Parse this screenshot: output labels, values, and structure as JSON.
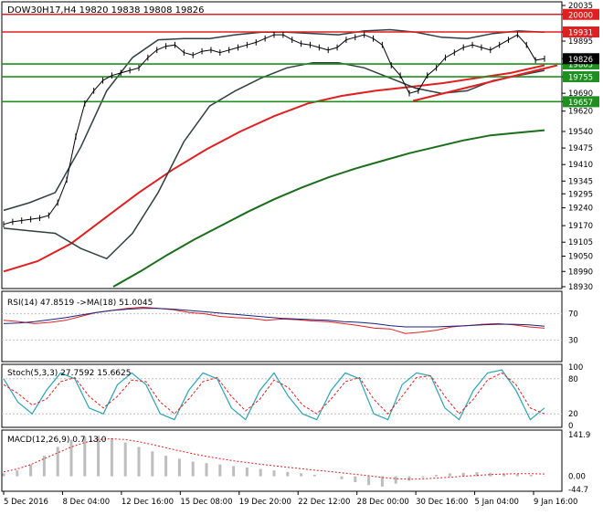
{
  "chart_data": {
    "type": "line",
    "instrument": "DOW30H17,H4",
    "ohlc": {
      "open": "19820",
      "high": "19838",
      "low": "19808",
      "close": "19826"
    },
    "title_text": "DOW30H17,H4  19820 19838 19808 19826",
    "price_axis": {
      "ticks": [
        "20035",
        "20000",
        "19931",
        "19895",
        "19826",
        "19805",
        "19755",
        "19690",
        "19657",
        "19620",
        "19540",
        "19475",
        "19410",
        "19345",
        "19295",
        "19240",
        "19170",
        "19105",
        "19050",
        "18990",
        "18930"
      ],
      "ylim": [
        18930,
        20035
      ]
    },
    "levels": [
      {
        "value": 20000,
        "label": "20000",
        "color": "#e02020",
        "style": "solid"
      },
      {
        "value": 19931,
        "label": "19931",
        "color": "#e02020",
        "style": "solid"
      },
      {
        "value": 19805,
        "label": "19805",
        "color": "#1f8f1f",
        "style": "solid"
      },
      {
        "value": 19755,
        "label": "19755",
        "color": "#1f8f1f",
        "style": "solid"
      },
      {
        "value": 19657,
        "label": "19657",
        "color": "#1f8f1f",
        "style": "solid"
      }
    ],
    "current_price": {
      "value": 19826,
      "label": "19826"
    },
    "x_ticks": [
      "5 Dec 2016",
      "8 Dec 04:00",
      "12 Dec 16:00",
      "15 Dec 08:00",
      "19 Dec 20:00",
      "22 Dec 12:00",
      "28 Dec 00:00",
      "30 Dec 16:00",
      "5 Jan 04:00",
      "9 Jan 16:00"
    ],
    "price_series": {
      "name": "close",
      "values": [
        19175,
        19185,
        19190,
        19195,
        19200,
        19210,
        19260,
        19350,
        19520,
        19650,
        19700,
        19740,
        19760,
        19770,
        19780,
        19790,
        19830,
        19860,
        19875,
        19880,
        19850,
        19840,
        19855,
        19860,
        19850,
        19860,
        19870,
        19880,
        19890,
        19905,
        19920,
        19920,
        19900,
        19885,
        19880,
        19870,
        19860,
        19870,
        19900,
        19910,
        19920,
        19905,
        19880,
        19800,
        19760,
        19690,
        19700,
        19760,
        19790,
        19830,
        19850,
        19870,
        19880,
        19870,
        19860,
        19880,
        19900,
        19920,
        19880,
        19820,
        19826
      ]
    },
    "sma200": {
      "name": "",
      "values": [
        18930,
        18990,
        19055,
        19115,
        19170,
        19225,
        19275,
        19320,
        19360,
        19395,
        19425,
        19455,
        19480,
        19505,
        19525,
        19535,
        19545
      ]
    },
    "sma100": {
      "name": "",
      "values": [
        18990,
        19030,
        19100,
        19200,
        19300,
        19390,
        19470,
        19540,
        19600,
        19650,
        19680,
        19700,
        19715,
        19730,
        19750,
        19770,
        19800
      ]
    },
    "bollinger_upper": [
      19230,
      19260,
      19300,
      19480,
      19700,
      19830,
      19900,
      19905,
      19905,
      19920,
      19930,
      19930,
      19925,
      19920,
      19935,
      19940,
      19930,
      19910,
      19905,
      19925,
      19935,
      19930
    ],
    "bollinger_lower": [
      19160,
      19150,
      19140,
      19080,
      19040,
      19140,
      19300,
      19500,
      19640,
      19700,
      19750,
      19790,
      19810,
      19810,
      19790,
      19750,
      19710,
      19690,
      19700,
      19740,
      19760,
      19780
    ],
    "trendlines": [
      {
        "from": 19660,
        "to": 19800,
        "color": "#e02020"
      }
    ],
    "rsi": {
      "label": "RSI(14) 47.8519  ->MA(18) 51.0045",
      "ticks": [
        "70",
        "30"
      ],
      "ylim": [
        0,
        100
      ],
      "values": [
        60,
        58,
        55,
        57,
        60,
        66,
        72,
        75,
        78,
        80,
        78,
        76,
        72,
        70,
        66,
        64,
        63,
        60,
        62,
        61,
        59,
        58,
        55,
        52,
        48,
        47,
        40,
        42,
        45,
        50,
        52,
        54,
        55,
        53,
        50,
        48
      ],
      "ma_values": [
        55,
        56,
        58,
        61,
        64,
        68,
        72,
        75,
        77,
        78,
        78,
        77,
        75,
        73,
        71,
        69,
        67,
        65,
        63,
        62,
        61,
        60,
        58,
        57,
        55,
        52,
        50,
        50,
        50,
        51,
        52,
        53,
        54,
        54,
        53,
        51
      ]
    },
    "stoch": {
      "label": "Stoch(5,3,3) 27.7592 15.6625",
      "ticks": [
        "100",
        "80",
        "20",
        "0"
      ],
      "ylim": [
        0,
        100
      ],
      "k_values": [
        80,
        40,
        20,
        60,
        90,
        80,
        30,
        20,
        70,
        90,
        70,
        20,
        10,
        60,
        90,
        80,
        30,
        10,
        60,
        90,
        50,
        20,
        10,
        60,
        90,
        80,
        20,
        10,
        70,
        90,
        85,
        30,
        10,
        60,
        90,
        95,
        60,
        10,
        30
      ],
      "d_values": [
        70,
        55,
        35,
        45,
        75,
        82,
        50,
        30,
        50,
        78,
        75,
        40,
        20,
        45,
        75,
        82,
        50,
        25,
        45,
        78,
        65,
        35,
        20,
        45,
        75,
        82,
        45,
        20,
        50,
        82,
        85,
        50,
        20,
        45,
        78,
        90,
        70,
        30,
        20
      ]
    },
    "macd": {
      "label": "MACD(12,26,9) 0.7 13.0",
      "ticks": [
        "141.9",
        "0.00",
        "-44.7"
      ],
      "ylim": [
        -44.7,
        141.9
      ],
      "histogram": [
        10,
        20,
        40,
        70,
        100,
        125,
        135,
        138,
        130,
        115,
        100,
        85,
        70,
        60,
        50,
        45,
        40,
        35,
        30,
        25,
        20,
        15,
        10,
        5,
        0,
        -10,
        -20,
        -30,
        -35,
        -25,
        -15,
        -5,
        5,
        10,
        12,
        14,
        12,
        10,
        8,
        5,
        1
      ],
      "signal": [
        15,
        25,
        40,
        60,
        80,
        100,
        115,
        125,
        128,
        125,
        118,
        108,
        97,
        87,
        77,
        68,
        60,
        53,
        47,
        41,
        36,
        31,
        26,
        21,
        17,
        12,
        7,
        2,
        -4,
        -8,
        -10,
        -9,
        -6,
        -3,
        0,
        3,
        6,
        8,
        9,
        9,
        8
      ]
    },
    "colors": {
      "price": "#000000",
      "sma100": "#e02020",
      "sma200": "#1a6e1a",
      "bollinger": "#2f3f3f",
      "rsi": "#e02020",
      "rsi_ma": "#1a237e",
      "stoch_k": "#2aa3b5",
      "stoch_d": "#e02020",
      "macd_hist": "#bdbdbd",
      "macd_signal": "#e02020",
      "support": "#1f8f1f",
      "resistance": "#e02020"
    }
  }
}
